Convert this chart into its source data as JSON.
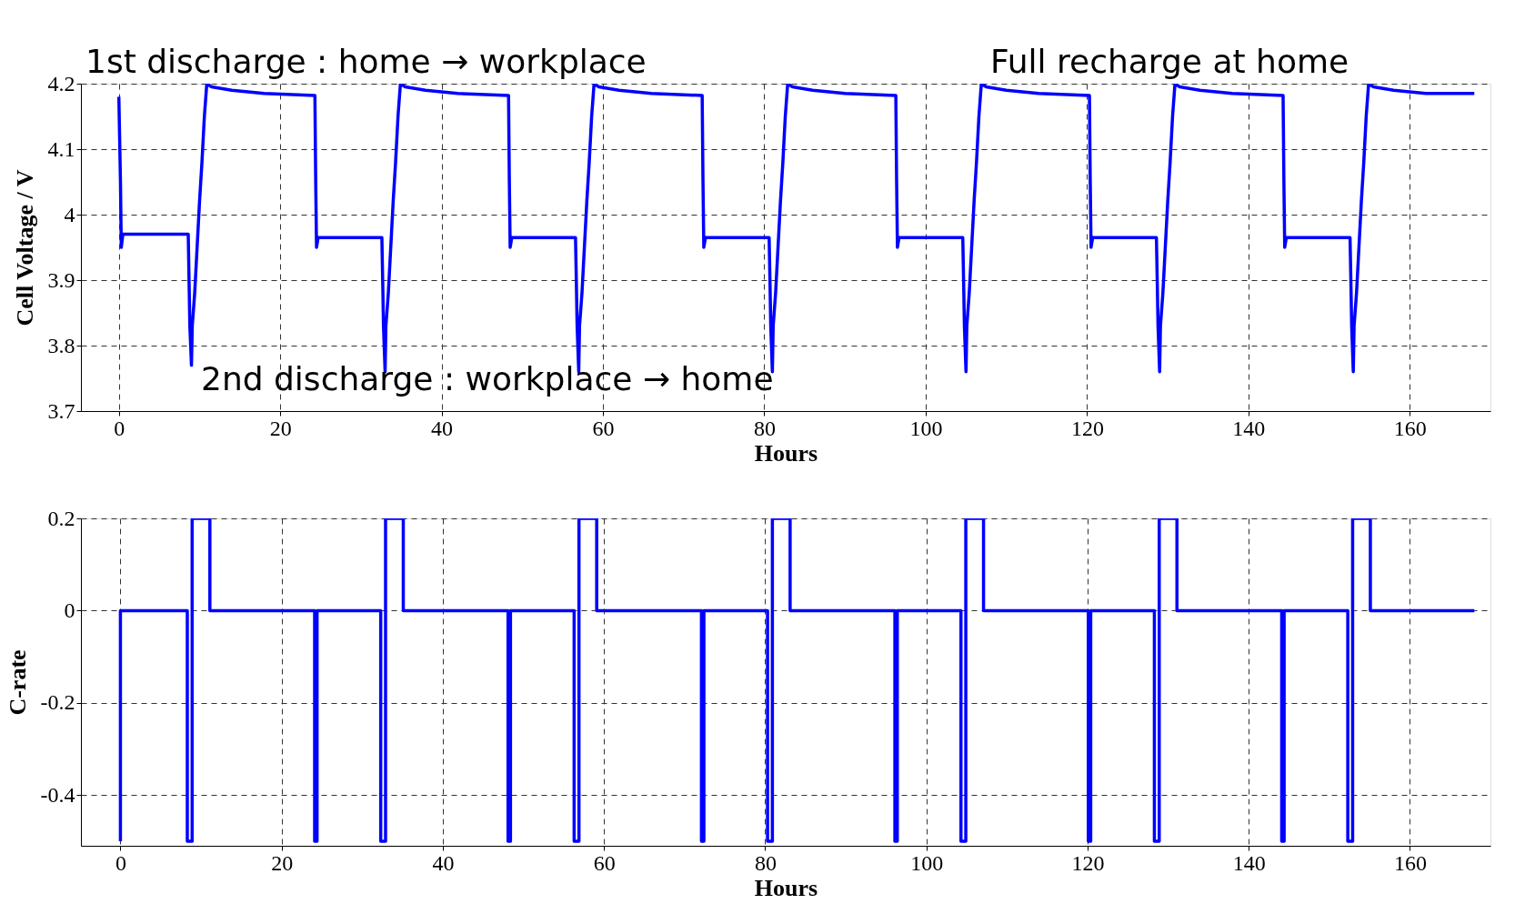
{
  "chart_data": [
    {
      "type": "line",
      "xlabel": "Hours",
      "ylabel": "Cell Voltage / V",
      "xlim": [
        -4.7,
        170
      ],
      "xticks": [
        0,
        20,
        40,
        60,
        80,
        100,
        120,
        140,
        160
      ],
      "ylim": [
        3.7,
        4.2
      ],
      "yticks": [
        3.7,
        3.8,
        3.9,
        4,
        4.1,
        4.2
      ],
      "grid": true,
      "annotations": [
        "1st discharge : home → workplace",
        "2nd discharge : workplace → home",
        "Full recharge at home"
      ],
      "series": [
        {
          "color": "#0000ff",
          "x": [
            0,
            0.2,
            0.3,
            0.5,
            8.6,
            8.7,
            8.8,
            9,
            9.1,
            9.4,
            9.7,
            10,
            10.3,
            10.6,
            10.9,
            11.5,
            14,
            18,
            24.3,
            24.4,
            24.5,
            24.7,
            32.6,
            32.7,
            32.8,
            33,
            33.1,
            33.4,
            33.7,
            34,
            34.3,
            34.6,
            34.9,
            35.5,
            38,
            42,
            48.3,
            48.4,
            48.5,
            48.7,
            56.6,
            56.7,
            56.8,
            57,
            57.1,
            57.4,
            57.7,
            58,
            58.3,
            58.6,
            58.9,
            59.5,
            62,
            66,
            72.3,
            72.4,
            72.5,
            72.7,
            80.6,
            80.7,
            80.8,
            81,
            81.1,
            81.4,
            81.7,
            82,
            82.3,
            82.6,
            82.9,
            83.5,
            86,
            90,
            96.3,
            96.4,
            96.5,
            96.7,
            104.6,
            104.7,
            104.8,
            105,
            105.1,
            105.4,
            105.7,
            106,
            106.3,
            106.6,
            106.9,
            107.5,
            110,
            114,
            120.3,
            120.4,
            120.5,
            120.7,
            128.6,
            128.7,
            128.8,
            129,
            129.1,
            129.4,
            129.7,
            130,
            130.3,
            130.6,
            130.9,
            131.5,
            134,
            138,
            144.3,
            144.4,
            144.5,
            144.7,
            152.6,
            152.7,
            152.8,
            153,
            153.1,
            153.4,
            153.7,
            154,
            154.3,
            154.6,
            154.9,
            155.5,
            158,
            162,
            168
          ],
          "values": [
            4.18,
            4.05,
            3.95,
            3.97,
            3.97,
            3.9,
            3.83,
            3.77,
            3.83,
            3.88,
            3.95,
            4.02,
            4.08,
            4.15,
            4.2,
            4.195,
            4.19,
            4.185,
            4.182,
            4.05,
            3.95,
            3.965,
            3.965,
            3.9,
            3.83,
            3.76,
            3.83,
            3.88,
            3.95,
            4.02,
            4.08,
            4.15,
            4.2,
            4.195,
            4.19,
            4.185,
            4.182,
            4.05,
            3.95,
            3.965,
            3.965,
            3.9,
            3.83,
            3.76,
            3.83,
            3.88,
            3.95,
            4.02,
            4.08,
            4.15,
            4.2,
            4.195,
            4.19,
            4.185,
            4.182,
            4.05,
            3.95,
            3.965,
            3.965,
            3.9,
            3.83,
            3.76,
            3.83,
            3.88,
            3.95,
            4.02,
            4.08,
            4.15,
            4.2,
            4.195,
            4.19,
            4.185,
            4.182,
            4.05,
            3.95,
            3.965,
            3.965,
            3.9,
            3.83,
            3.76,
            3.83,
            3.88,
            3.95,
            4.02,
            4.08,
            4.15,
            4.2,
            4.195,
            4.19,
            4.185,
            4.182,
            4.05,
            3.95,
            3.965,
            3.965,
            3.9,
            3.83,
            3.76,
            3.83,
            3.88,
            3.95,
            4.02,
            4.08,
            4.15,
            4.2,
            4.195,
            4.19,
            4.185,
            4.182,
            4.05,
            3.95,
            3.965,
            3.965,
            3.9,
            3.83,
            3.76,
            3.83,
            3.88,
            3.95,
            4.02,
            4.08,
            4.15,
            4.2,
            4.195,
            4.19,
            4.185,
            4.185
          ]
        }
      ]
    },
    {
      "type": "line",
      "xlabel": "Hours",
      "ylabel": "C-rate",
      "xlim": [
        -4.9,
        170
      ],
      "xticks": [
        0,
        20,
        40,
        60,
        80,
        100,
        120,
        140,
        160
      ],
      "ylim": [
        -0.51,
        0.2
      ],
      "yticks": [
        -0.4,
        -0.2,
        0,
        0.2
      ],
      "grid": true,
      "series": [
        {
          "color": "#0000ff",
          "x": [
            0,
            0,
            8.3,
            8.3,
            8.9,
            8.9,
            11.1,
            11.1,
            24.1,
            24.1,
            24.4,
            24.4,
            32.3,
            32.3,
            32.9,
            32.9,
            35.1,
            35.1,
            48.1,
            48.1,
            48.4,
            48.4,
            56.3,
            56.3,
            56.9,
            56.9,
            59.1,
            59.1,
            72.1,
            72.1,
            72.4,
            72.4,
            80.3,
            80.3,
            80.9,
            80.9,
            83.1,
            83.1,
            96.1,
            96.1,
            96.4,
            96.4,
            104.3,
            104.3,
            104.9,
            104.9,
            107.1,
            107.1,
            120.1,
            120.1,
            120.4,
            120.4,
            128.3,
            128.3,
            128.9,
            128.9,
            131.1,
            131.1,
            144.1,
            144.1,
            144.4,
            144.4,
            152.3,
            152.3,
            152.9,
            152.9,
            155.1,
            155.1,
            168
          ],
          "values": [
            -0.5,
            0,
            0,
            -0.5,
            -0.5,
            0.2,
            0.2,
            0,
            0,
            -0.5,
            -0.5,
            0,
            0,
            -0.5,
            -0.5,
            0.2,
            0.2,
            0,
            0,
            -0.5,
            -0.5,
            0,
            0,
            -0.5,
            -0.5,
            0.2,
            0.2,
            0,
            0,
            -0.5,
            -0.5,
            0,
            0,
            -0.5,
            -0.5,
            0.2,
            0.2,
            0,
            0,
            -0.5,
            -0.5,
            0,
            0,
            -0.5,
            -0.5,
            0.2,
            0.2,
            0,
            0,
            -0.5,
            -0.5,
            0,
            0,
            -0.5,
            -0.5,
            0.2,
            0.2,
            0,
            0,
            -0.5,
            -0.5,
            0,
            0,
            -0.5,
            -0.5,
            0.2,
            0.2,
            0,
            0
          ]
        }
      ]
    }
  ]
}
